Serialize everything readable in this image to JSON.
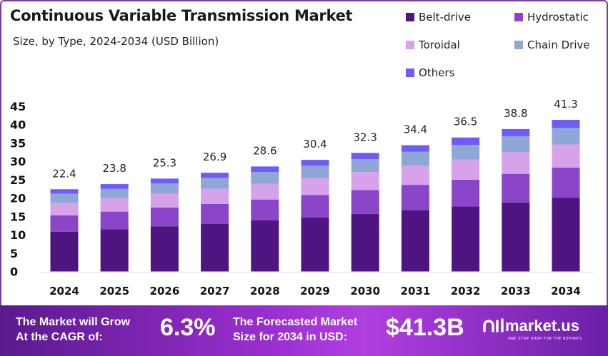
{
  "chart_data": {
    "type": "bar",
    "stacked": true,
    "title": "Continuous Variable Transmission Market",
    "subtitle": "Size, by Type, 2024-2034 (USD Billion)",
    "categories": [
      "2024",
      "2025",
      "2026",
      "2027",
      "2028",
      "2029",
      "2030",
      "2031",
      "2032",
      "2033",
      "2034"
    ],
    "totals": [
      "22.4",
      "23.8",
      "25.3",
      "26.9",
      "28.6",
      "30.4",
      "32.3",
      "34.4",
      "36.5",
      "38.8",
      "41.3"
    ],
    "series": [
      {
        "name": "Belt-drive",
        "color": "#4e1580",
        "values": [
          10.8,
          11.5,
          12.3,
          13.0,
          13.9,
          14.7,
          15.7,
          16.7,
          17.7,
          18.8,
          20.1
        ]
      },
      {
        "name": "Hydrostatic",
        "color": "#8a45c8",
        "values": [
          4.5,
          4.8,
          5.1,
          5.4,
          5.7,
          6.1,
          6.5,
          6.9,
          7.3,
          7.8,
          8.2
        ]
      },
      {
        "name": "Toroidal",
        "color": "#d6a2ea",
        "values": [
          3.4,
          3.6,
          3.8,
          4.1,
          4.3,
          4.6,
          4.9,
          5.2,
          5.5,
          5.9,
          6.3
        ]
      },
      {
        "name": "Chain Drive",
        "color": "#8fa6d8",
        "values": [
          2.5,
          2.6,
          2.8,
          3.0,
          3.2,
          3.4,
          3.5,
          3.8,
          4.0,
          4.3,
          4.5
        ]
      },
      {
        "name": "Others",
        "color": "#6f5cf5",
        "values": [
          1.2,
          1.3,
          1.3,
          1.4,
          1.5,
          1.6,
          1.7,
          1.8,
          2.0,
          2.0,
          2.2
        ]
      }
    ],
    "yticks": [
      "0",
      "5",
      "10",
      "15",
      "20",
      "25",
      "30",
      "35",
      "40",
      "45"
    ],
    "ylim": [
      0,
      45
    ],
    "grid": false,
    "legend": "top-right"
  },
  "footer": {
    "cagr_label_1": "The Market will Grow",
    "cagr_label_2": "At the CAGR of:",
    "cagr_value": "6.3%",
    "forecast_label_1": "The Forecasted Market",
    "forecast_label_2": "Size for 2034 in USD:",
    "forecast_value": "$41.3B",
    "logo_text": "market.us",
    "logo_tagline": "ONE STOP SHOP FOR THE REPORTS"
  }
}
